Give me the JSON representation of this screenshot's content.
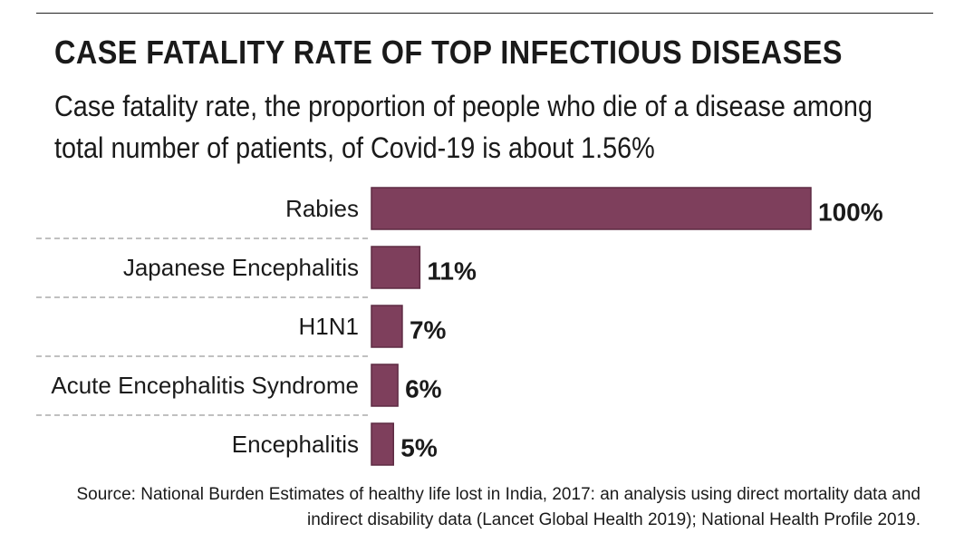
{
  "header": {
    "title": "CASE FATALITY RATE OF TOP INFECTIOUS DISEASES",
    "subtitle": "Case fatality rate, the proportion of people who die of a disease among total number of patients, of Covid-19 is about 1.56%"
  },
  "footer": {
    "source": "Source: National Burden Estimates of healthy life lost in India, 2017: an analysis using direct mortality data and indirect disability data (Lancet Global Health 2019); National Health Profile 2019."
  },
  "colors": {
    "bar": "#7e3f5c",
    "bar_stroke": "#5e2b43",
    "divider": "#9a9a9a"
  },
  "chart_data": {
    "type": "bar",
    "orientation": "horizontal",
    "categories": [
      "Rabies",
      "Japanese Encephalitis",
      "H1N1",
      "Acute Encephalitis Syndrome",
      "Encephalitis"
    ],
    "values": [
      100,
      11,
      7,
      6,
      5
    ],
    "value_labels": [
      "100%",
      "11%",
      "7%",
      "6%",
      "5%"
    ],
    "xlim": [
      0,
      100
    ],
    "grid": false,
    "legend": "none"
  }
}
